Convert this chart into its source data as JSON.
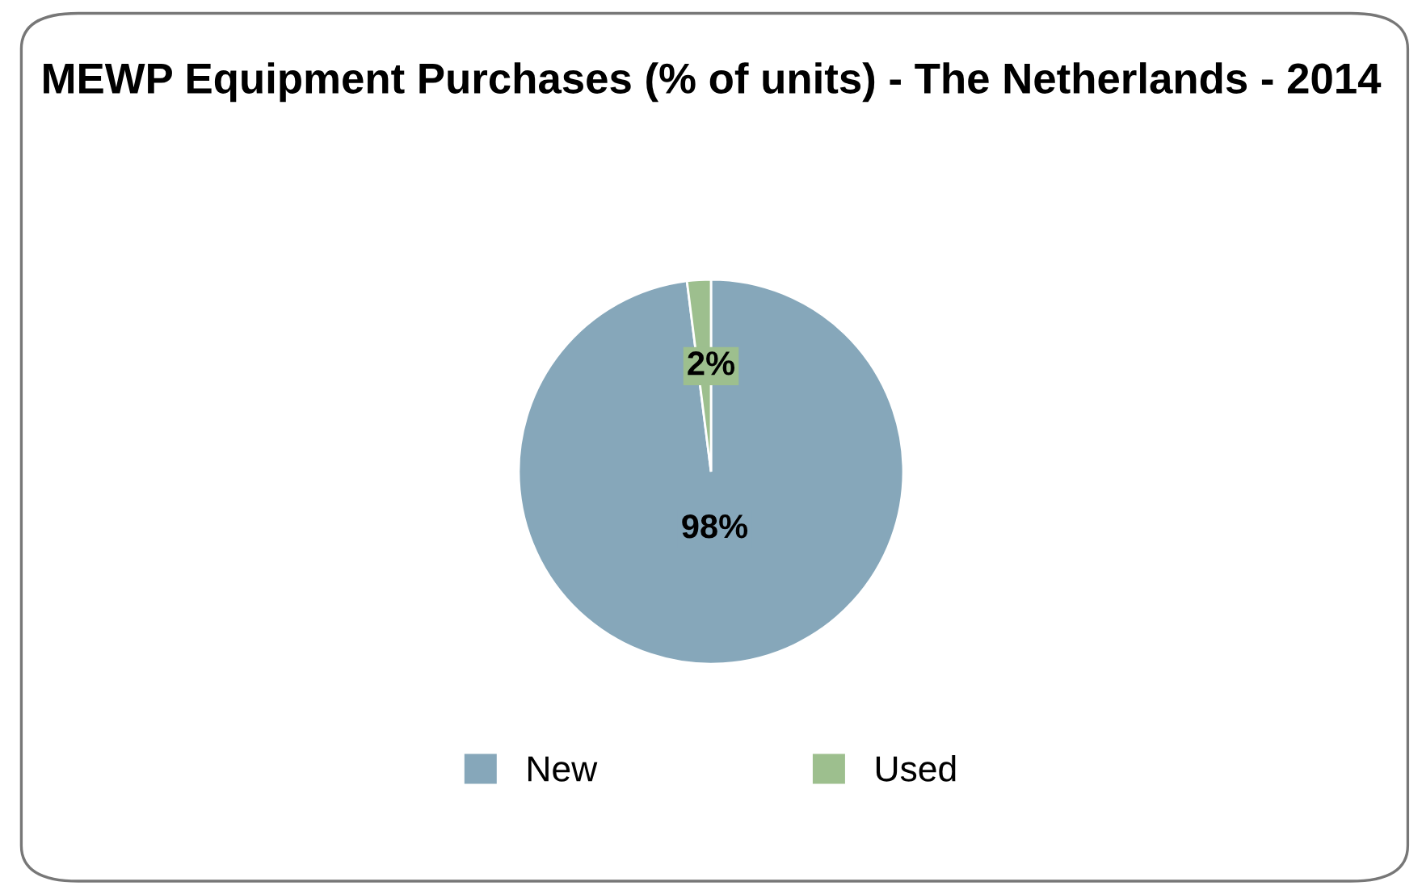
{
  "chart_data": {
    "type": "pie",
    "title": "MEWP Equipment Purchases (% of units) - The Netherlands - 2014",
    "categories": [
      "New",
      "Used"
    ],
    "values": [
      98,
      2
    ],
    "colors": [
      "#86a7ba",
      "#9dbf8e"
    ],
    "value_labels": [
      "98%",
      "2%"
    ],
    "legend": "bottom"
  }
}
